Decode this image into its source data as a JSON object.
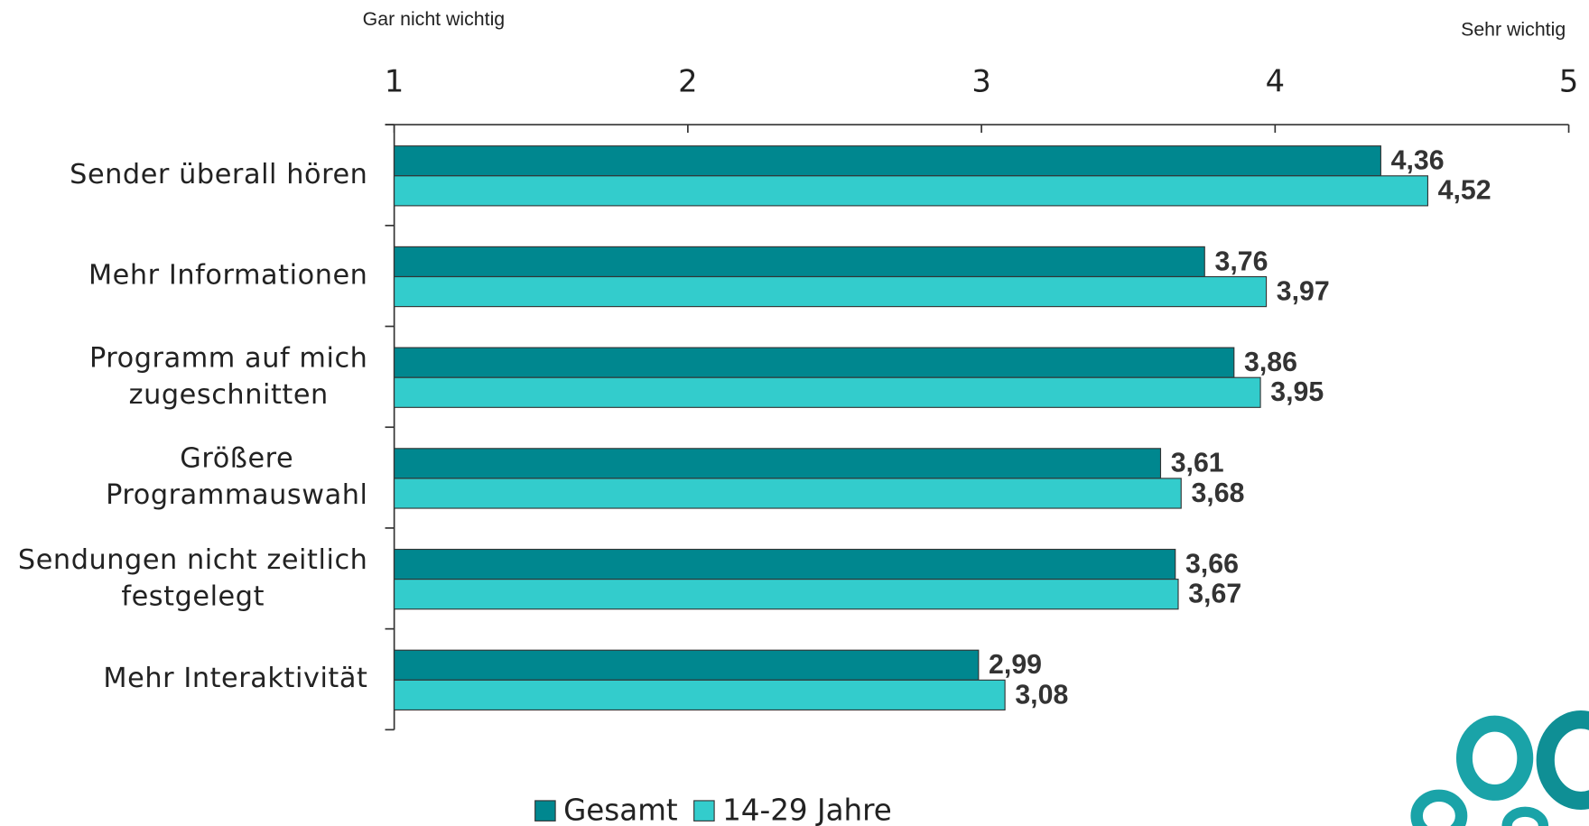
{
  "chart_data": {
    "type": "hbar",
    "annotations": [
      "Gar nicht wichtig",
      "Sehr wichtig"
    ],
    "categories": [
      "Sender überall hören",
      "Mehr Informationen",
      "Programm auf mich\nzugeschnitten",
      "Größere\nProgrammauswahl",
      "Sendungen nicht zeitlich\nfestgelegt",
      "Mehr Interaktivität"
    ],
    "series": [
      {
        "name": "Gesamt",
        "color": "#00878f",
        "values": [
          4.36,
          3.76,
          3.86,
          3.61,
          3.66,
          2.99
        ],
        "value_labels": [
          "4,36",
          "3,76",
          "3,86",
          "3,61",
          "3,66",
          "2,99"
        ]
      },
      {
        "name": "14-29 Jahre",
        "color": "#33cccc",
        "values": [
          4.52,
          3.97,
          3.95,
          3.68,
          3.67,
          3.08
        ],
        "value_labels": [
          "4,52",
          "3,97",
          "3,95",
          "3,68",
          "3,67",
          "3,08"
        ]
      }
    ],
    "xlim": [
      1,
      5
    ],
    "xticks": [
      1,
      2,
      3,
      4,
      5
    ]
  }
}
